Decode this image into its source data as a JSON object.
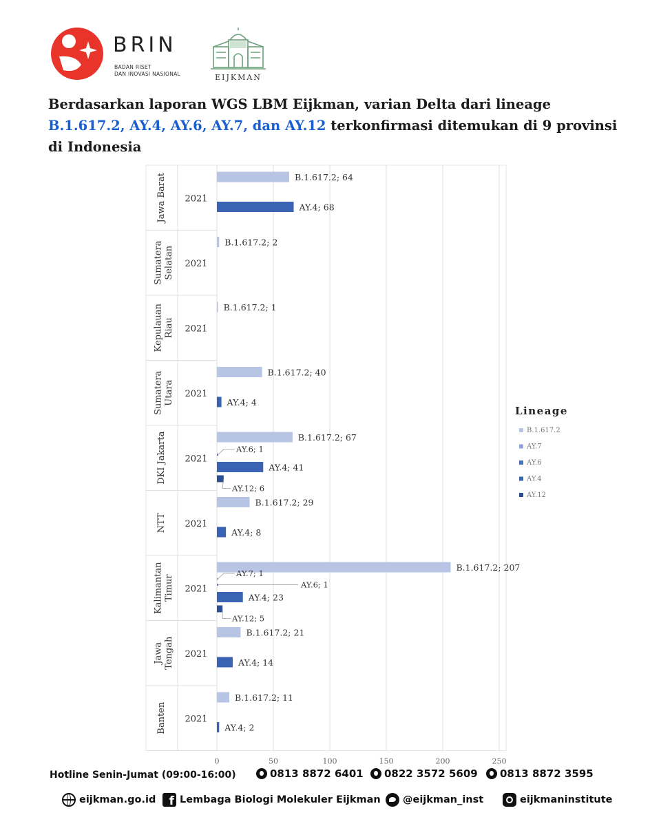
{
  "header": {
    "brin_word": "BRIN",
    "brin_subtitle_line1": "BADAN RISET",
    "brin_subtitle_line2": "DAN INOVASI NASIONAL",
    "eijkman_word": "EIJKMAN"
  },
  "headline": {
    "line1": "Berdasarkan laporan WGS LBM Eijkman, varian Delta dari lineage",
    "highlight": "B.1.617.2, AY.4, AY.6, AY.7, dan AY.12",
    "line2_rest": " terkonfirmasi ditemukan di 9 provinsi di Indonesia"
  },
  "colors": {
    "B.1.617.2": "#b8c4e4",
    "AY.7": "#8ea6d8",
    "AY.6": "#4a70bc",
    "AY.4": "#3a63b4",
    "AY.12": "#2c4f94",
    "highlight": "#1a5fd0"
  },
  "chart_data": {
    "type": "bar",
    "orientation": "horizontal",
    "xlim": [
      0,
      250
    ],
    "xticks": [
      0,
      50,
      100,
      150,
      200,
      250
    ],
    "grid": true,
    "legend": {
      "title": "Lineage",
      "position": "right",
      "entries": [
        "B.1.617.2",
        "AY.7",
        "AY.6",
        "AY.4",
        "AY.12"
      ]
    },
    "groups": [
      {
        "province": "Jawa Barat",
        "year": "2021",
        "bars": [
          {
            "series": "B.1.617.2",
            "value": 64,
            "label": "B.1.617.2; 64"
          },
          {
            "series": "AY.4",
            "value": 68,
            "label": "AY.4; 68"
          }
        ]
      },
      {
        "province": "Sumatera Selatan",
        "year": "2021",
        "bars": [
          {
            "series": "B.1.617.2",
            "value": 2,
            "label": "B.1.617.2; 2"
          }
        ]
      },
      {
        "province": "Kepulauan Riau",
        "year": "2021",
        "bars": [
          {
            "series": "B.1.617.2",
            "value": 1,
            "label": "B.1.617.2; 1"
          }
        ]
      },
      {
        "province": "Sumatera Utara",
        "year": "2021",
        "bars": [
          {
            "series": "B.1.617.2",
            "value": 40,
            "label": "B.1.617.2; 40"
          },
          {
            "series": "AY.4",
            "value": 4,
            "label": "AY.4; 4"
          }
        ]
      },
      {
        "province": "DKI Jakarta",
        "year": "2021",
        "bars": [
          {
            "series": "B.1.617.2",
            "value": 67,
            "label": "B.1.617.2; 67"
          },
          {
            "series": "AY.6",
            "value": 1,
            "label": "AY.6; 1"
          },
          {
            "series": "AY.4",
            "value": 41,
            "label": "AY.4; 41"
          },
          {
            "series": "AY.12",
            "value": 6,
            "label": "AY.12; 6"
          }
        ]
      },
      {
        "province": "NTT",
        "year": "2021",
        "bars": [
          {
            "series": "B.1.617.2",
            "value": 29,
            "label": "B.1.617.2; 29"
          },
          {
            "series": "AY.4",
            "value": 8,
            "label": "AY.4; 8"
          }
        ]
      },
      {
        "province": "Kalimantan Timur",
        "year": "2021",
        "bars": [
          {
            "series": "B.1.617.2",
            "value": 207,
            "label": "B.1.617.2; 207"
          },
          {
            "series": "AY.7",
            "value": 1,
            "label": "AY.7; 1"
          },
          {
            "series": "AY.6",
            "value": 1,
            "label": "AY.6; 1"
          },
          {
            "series": "AY.4",
            "value": 23,
            "label": "AY.4; 23"
          },
          {
            "series": "AY.12",
            "value": 5,
            "label": "AY.12; 5"
          }
        ]
      },
      {
        "province": "Jawa Tengah",
        "year": "2021",
        "bars": [
          {
            "series": "B.1.617.2",
            "value": 21,
            "label": "B.1.617.2; 21"
          },
          {
            "series": "AY.4",
            "value": 14,
            "label": "AY.4; 14"
          }
        ]
      },
      {
        "province": "Banten",
        "year": "2021",
        "bars": [
          {
            "series": "B.1.617.2",
            "value": 11,
            "label": "B.1.617.2; 11"
          },
          {
            "series": "AY.4",
            "value": 2,
            "label": "AY.4; 2"
          }
        ]
      }
    ]
  },
  "footer": {
    "hotline_label": "Hotline Senin-Jumat (09:00-16:00)",
    "phones": [
      "0813 8872 6401",
      "0822 3572 5609",
      "0813 8872 3595"
    ],
    "website": "eijkman.go.id",
    "facebook": "Lembaga Biologi Molekuler Eijkman",
    "twitter": "@eijkman_inst",
    "instagram": "eijkmaninstitute"
  }
}
